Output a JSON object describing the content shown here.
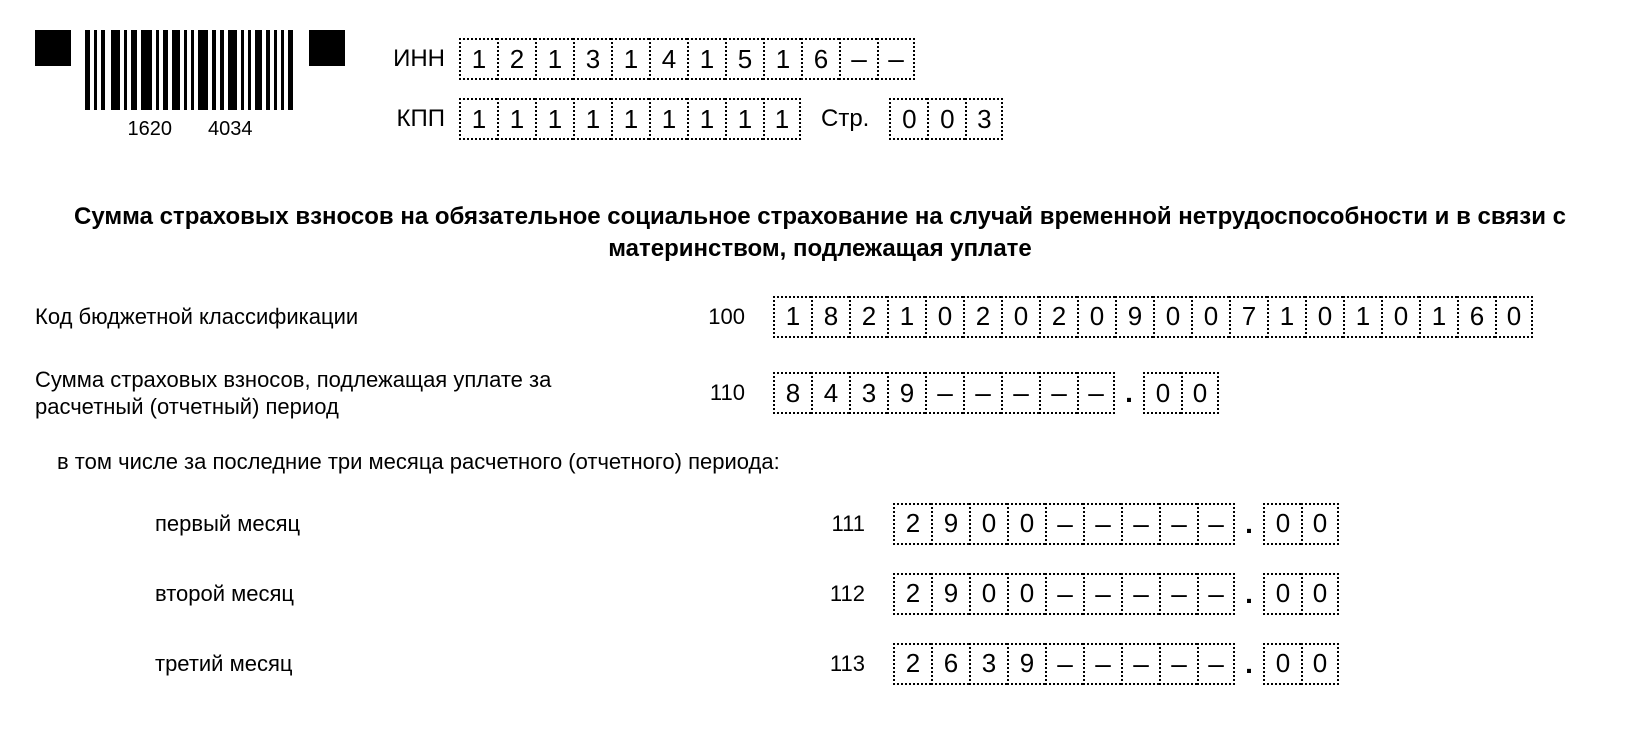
{
  "barcode": {
    "left_number": "1620",
    "right_number": "4034"
  },
  "header": {
    "inn_label": "ИНН",
    "inn": [
      "1",
      "2",
      "1",
      "3",
      "1",
      "4",
      "1",
      "5",
      "1",
      "6",
      "–",
      "–"
    ],
    "kpp_label": "КПП",
    "kpp": [
      "1",
      "1",
      "1",
      "1",
      "1",
      "1",
      "1",
      "1",
      "1"
    ],
    "page_label": "Стр.",
    "page": [
      "0",
      "0",
      "3"
    ]
  },
  "title": "Сумма страховых взносов на обязательное социальное страхование на случай временной нетрудоспособности и в связи с материнством, подлежащая уплате",
  "rows": {
    "r100": {
      "label": "Код бюджетной классификации",
      "code": "100",
      "cells": [
        "1",
        "8",
        "2",
        "1",
        "0",
        "2",
        "0",
        "2",
        "0",
        "9",
        "0",
        "0",
        "7",
        "1",
        "0",
        "1",
        "0",
        "1",
        "6",
        "0"
      ]
    },
    "r110": {
      "label": "Сумма страховых взносов, подлежащая уплате за расчетный (отчетный) период",
      "code": "110",
      "int": [
        "8",
        "4",
        "3",
        "9",
        "–",
        "–",
        "–",
        "–",
        "–"
      ],
      "frac": [
        "0",
        "0"
      ]
    },
    "subnote": "в том числе за последние три месяца расчетного (отчетного) периода:",
    "r111": {
      "label": "первый месяц",
      "code": "111",
      "int": [
        "2",
        "9",
        "0",
        "0",
        "–",
        "–",
        "–",
        "–",
        "–"
      ],
      "frac": [
        "0",
        "0"
      ]
    },
    "r112": {
      "label": "второй месяц",
      "code": "112",
      "int": [
        "2",
        "9",
        "0",
        "0",
        "–",
        "–",
        "–",
        "–",
        "–"
      ],
      "frac": [
        "0",
        "0"
      ]
    },
    "r113": {
      "label": "третий месяц",
      "code": "113",
      "int": [
        "2",
        "6",
        "3",
        "9",
        "–",
        "–",
        "–",
        "–",
        "–"
      ],
      "frac": [
        "0",
        "0"
      ]
    }
  }
}
